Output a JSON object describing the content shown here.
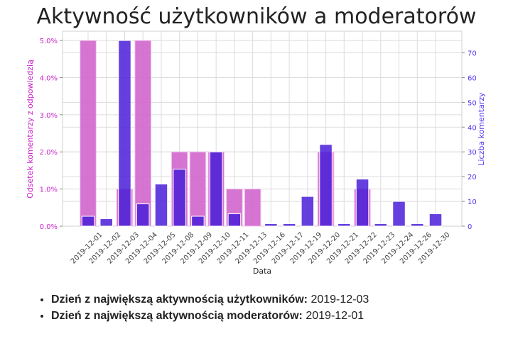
{
  "chart_data": {
    "type": "bar",
    "title": "Aktywność użytkowników a moderatorów",
    "xlabel": "Data",
    "ylabel_left": "Odsetek komentarzy z odpowiedzią",
    "ylabel_right": "Liczba komentarzy",
    "categories": [
      "2019-12-01",
      "2019-12-02",
      "2019-12-03",
      "2019-12-04",
      "2019-12-05",
      "2019-12-08",
      "2019-12-09",
      "2019-12-10",
      "2019-12-11",
      "2019-12-13",
      "2019-12-16",
      "2019-12-17",
      "2019-12-19",
      "2019-12-20",
      "2019-12-21",
      "2019-12-22",
      "2019-12-23",
      "2019-12-24",
      "2019-12-26",
      "2019-12-30"
    ],
    "series": [
      {
        "name": "Odsetek komentarzy z odpowiedzią",
        "axis": "left",
        "unit": "%",
        "color": "#d166cc",
        "values": [
          5.0,
          0,
          1.0,
          5.0,
          0,
          2.0,
          2.0,
          2.0,
          1.0,
          1.0,
          0,
          0,
          0,
          2.0,
          0,
          1.0,
          0,
          0,
          0,
          0
        ]
      },
      {
        "name": "Liczba komentarzy",
        "axis": "right",
        "color": "#5533dd",
        "values": [
          4,
          3,
          75,
          9,
          17,
          23,
          4,
          30,
          5,
          0,
          1,
          1,
          12,
          33,
          1,
          19,
          1,
          10,
          1,
          5
        ]
      }
    ],
    "ylim_left": [
      0,
      5.25
    ],
    "ylim_right": [
      0,
      78.75
    ],
    "yticks_left": [
      "0.0%",
      "1.0%",
      "2.0%",
      "3.0%",
      "4.0%",
      "5.0%"
    ],
    "yticks_right": [
      "0",
      "10",
      "20",
      "30",
      "40",
      "50",
      "60",
      "70"
    ],
    "left_axis_color": "#cc22cc",
    "right_axis_color": "#5533ee",
    "grid": true
  },
  "summary": {
    "users_label": "Dzień z największą aktywnością użytkowników:",
    "users_value": "2019-12-03",
    "mods_label": "Dzień z największą aktywnością moderatorów:",
    "mods_value": "2019-12-01"
  }
}
